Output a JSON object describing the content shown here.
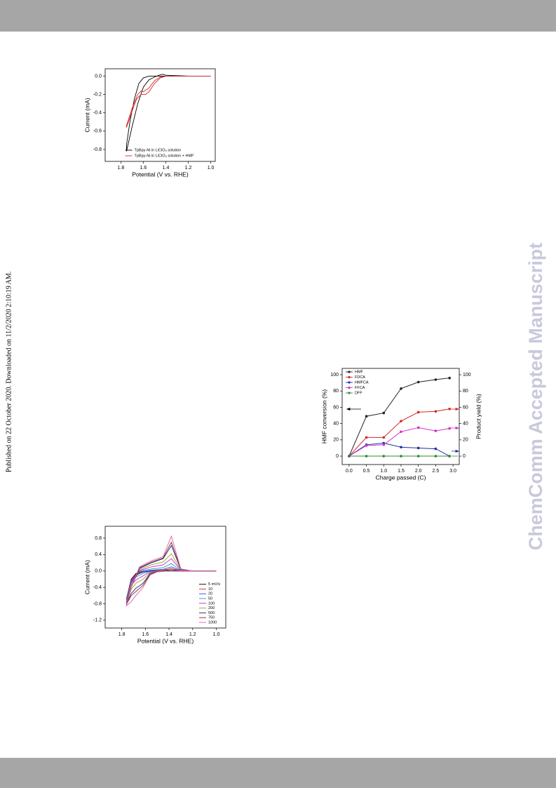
{
  "side_note": "Published on 22 October 2020. Downloaded on 11/2/2020 2:10:19 AM.",
  "watermark": "ChemComm Accepted Manuscript",
  "chart_data": [
    {
      "type": "line",
      "xlabel": "Potential (V vs. RHE)",
      "ylabel": "Current (mA)",
      "xlim": [
        1.94,
        0.96
      ],
      "ylim": [
        -0.93,
        0.08
      ],
      "xticks": [
        1.8,
        1.6,
        1.4,
        1.2,
        {
          "value": 1.0,
          "label": "1.0"
        }
      ],
      "yticks": [
        {
          "value": 0,
          "label": "0.0"
        },
        -0.2,
        -0.4,
        -0.6,
        -0.8
      ],
      "legend": "lower center",
      "series": [
        {
          "name": "TpBpy-Ni in LiClO₄ solution",
          "color": "#000000",
          "x": [
            1.0,
            1.2,
            1.4,
            1.43,
            1.46,
            1.5,
            1.55,
            1.6,
            1.65,
            1.7,
            1.75,
            1.75,
            1.72,
            1.68,
            1.64,
            1.6,
            1.55,
            1.5,
            1.45,
            1.4,
            1.2,
            1.0
          ],
          "values": [
            0,
            0,
            0.01,
            0.02,
            0.01,
            -0.01,
            -0.04,
            -0.12,
            -0.3,
            -0.55,
            -0.82,
            -0.75,
            -0.5,
            -0.25,
            -0.08,
            -0.02,
            0,
            0,
            0,
            0,
            0,
            0
          ]
        },
        {
          "name": "TpBpy-Ni in LiClO₄ solution + HMF",
          "color": "#d62728",
          "x": [
            1.0,
            1.2,
            1.35,
            1.4,
            1.45,
            1.5,
            1.55,
            1.58,
            1.62,
            1.66,
            1.7,
            1.75,
            1.75,
            1.7,
            1.65,
            1.62,
            1.6,
            1.55,
            1.5,
            1.45,
            1.4,
            1.3,
            1.0
          ],
          "values": [
            0,
            0,
            0,
            0,
            -0.02,
            -0.08,
            -0.17,
            -0.2,
            -0.2,
            -0.25,
            -0.38,
            -0.56,
            -0.54,
            -0.35,
            -0.2,
            -0.16,
            -0.17,
            -0.13,
            -0.05,
            -0.01,
            0,
            0,
            0
          ]
        }
      ]
    },
    {
      "type": "line",
      "markers": true,
      "xlabel": "Charge passed (C)",
      "ylabel": "HMF conversion (%)",
      "y2label": "Product yield (%)",
      "xlim": [
        -0.2,
        3.18
      ],
      "ylim": [
        -10.3,
        107.8
      ],
      "y2lim": [
        -10.3,
        107.8
      ],
      "xticks": [
        {
          "value": 0,
          "label": "0.0"
        },
        0.5,
        {
          "value": 1.0,
          "label": "1.0"
        },
        1.5,
        {
          "value": 2.0,
          "label": "2.0"
        },
        2.5,
        {
          "value": 3.0,
          "label": "3.0"
        }
      ],
      "yticks": [
        0,
        20,
        40,
        60,
        80,
        100
      ],
      "y2ticks": [
        0,
        20,
        40,
        60,
        80,
        100
      ],
      "legend": "upper left",
      "x": [
        0,
        0.5,
        1.0,
        1.5,
        2.0,
        2.5,
        2.9
      ],
      "series": [
        {
          "name": "HMF",
          "color": "#222222",
          "values": [
            0,
            49,
            53,
            83,
            91,
            94,
            96
          ]
        },
        {
          "name": "FDCA",
          "color": "#d62728",
          "axis": "y2",
          "values": [
            0,
            23,
            23,
            43,
            54,
            55,
            58
          ]
        },
        {
          "name": "HMFCA",
          "color": "#1f2fa0",
          "axis": "y2",
          "values": [
            0,
            14,
            16,
            11,
            10,
            9,
            0
          ]
        },
        {
          "name": "FFCA",
          "color": "#cc33cc",
          "axis": "y2",
          "values": [
            0,
            13,
            14,
            30,
            35,
            31,
            34
          ]
        },
        {
          "name": "DFF",
          "color": "#2e8b2e",
          "axis": "y2",
          "values": [
            0,
            0,
            0,
            0,
            0,
            0,
            0
          ]
        }
      ]
    },
    {
      "type": "line",
      "xlabel": "Potential (V vs. RHE)",
      "ylabel": "Current (mA)",
      "xlim": [
        1.94,
        0.92
      ],
      "ylim": [
        -1.39,
        1.09
      ],
      "xticks": [
        1.8,
        1.6,
        1.4,
        1.2,
        {
          "value": 1.0,
          "label": "1.0"
        }
      ],
      "yticks": [
        0.8,
        0.4,
        {
          "value": 0,
          "label": "0.0"
        },
        -0.4,
        -0.8,
        -1.2
      ],
      "legend": "lower right",
      "x": [
        1.0,
        1.2,
        1.3,
        1.38,
        1.45,
        1.55,
        1.65,
        1.72,
        1.76,
        1.72,
        1.68,
        1.62,
        1.56,
        1.5,
        1.4,
        1.2,
        1.0
      ],
      "series": [
        {
          "name": "5 mV/s",
          "color": "#000000",
          "values": [
            0,
            0,
            0,
            0.03,
            0.01,
            0,
            -0.04,
            -0.25,
            -0.68,
            -0.2,
            -0.06,
            -0.01,
            0,
            0,
            0,
            0,
            0
          ]
        },
        {
          "name": "10",
          "color": "#e02020",
          "values": [
            0,
            0,
            0,
            0.06,
            0.02,
            0.01,
            -0.03,
            -0.26,
            -0.69,
            -0.22,
            -0.08,
            -0.02,
            0,
            0,
            0,
            0,
            0
          ]
        },
        {
          "name": "20",
          "color": "#2040e0",
          "values": [
            0,
            0,
            0.01,
            0.1,
            0.04,
            0.02,
            -0.02,
            -0.27,
            -0.7,
            -0.25,
            -0.1,
            -0.03,
            0,
            0,
            0,
            0,
            0
          ]
        },
        {
          "name": "50",
          "color": "#20a0b0",
          "values": [
            0,
            0,
            0.01,
            0.18,
            0.08,
            0.05,
            0,
            -0.28,
            -0.72,
            -0.3,
            -0.15,
            -0.06,
            -0.01,
            0,
            0,
            0,
            0
          ]
        },
        {
          "name": "100",
          "color": "#d020d0",
          "values": [
            0,
            0,
            0.02,
            0.3,
            0.15,
            0.1,
            0.01,
            -0.3,
            -0.75,
            -0.35,
            -0.22,
            -0.12,
            -0.02,
            0,
            0,
            0,
            0
          ]
        },
        {
          "name": "200",
          "color": "#a0a020",
          "values": [
            0,
            0,
            0.03,
            0.42,
            0.22,
            0.15,
            0.03,
            -0.35,
            -0.78,
            -0.45,
            -0.3,
            -0.2,
            -0.04,
            0,
            0,
            0,
            0
          ]
        },
        {
          "name": "500",
          "color": "#1a237e",
          "values": [
            0,
            0,
            0.04,
            0.62,
            0.3,
            0.2,
            0.06,
            -0.4,
            -0.8,
            -0.55,
            -0.42,
            -0.3,
            -0.06,
            -0.01,
            0,
            0,
            0
          ]
        },
        {
          "name": "750",
          "color": "#7b2d26",
          "values": [
            0,
            0,
            0.05,
            0.7,
            0.32,
            0.22,
            0.08,
            -0.4,
            -0.82,
            -0.6,
            -0.5,
            -0.35,
            -0.08,
            -0.02,
            0,
            0,
            0
          ]
        },
        {
          "name": "1000",
          "color": "#e060b0",
          "values": [
            0,
            0,
            0.05,
            0.85,
            0.35,
            0.25,
            0.1,
            -0.4,
            -0.85,
            -0.75,
            -0.6,
            -0.4,
            -0.1,
            -0.02,
            0,
            0,
            0
          ]
        }
      ]
    }
  ]
}
